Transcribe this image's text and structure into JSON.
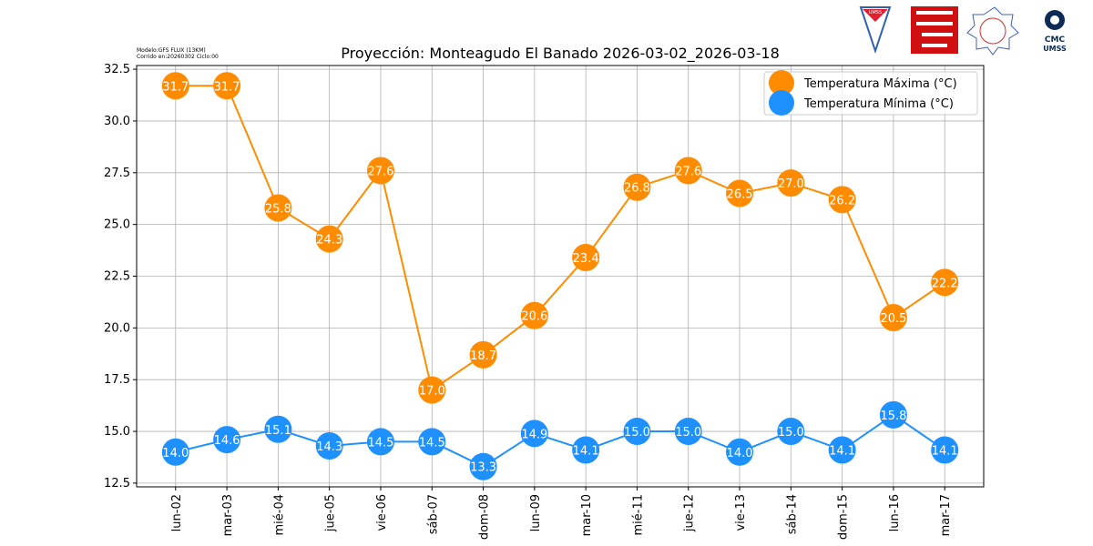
{
  "header": {
    "model": "Modelo:GFS FLUX (13KM)",
    "run": "Corrido en:20260302 Ciclo:00",
    "logos": [
      "UMSS",
      "",
      "",
      "CMC UMSS"
    ]
  },
  "colors": {
    "max": "#ff8c00",
    "min": "#1e90ff",
    "grid": "#b0b0b0"
  },
  "chart_data": {
    "type": "line",
    "title": "Proyección: Monteagudo El Banado 2026-03-02_2026-03-18",
    "xlabel": "",
    "ylabel": "",
    "categories": [
      "lun-02",
      "mar-03",
      "mié-04",
      "jue-05",
      "vie-06",
      "sáb-07",
      "dom-08",
      "lun-09",
      "mar-10",
      "mié-11",
      "jue-12",
      "vie-13",
      "sáb-14",
      "dom-15",
      "lun-16",
      "mar-17"
    ],
    "series": [
      {
        "name": "Temperatura Máxima  (°C)",
        "values": [
          31.7,
          31.7,
          25.8,
          24.3,
          27.6,
          17.0,
          18.7,
          20.6,
          23.4,
          26.8,
          27.6,
          26.5,
          27.0,
          26.2,
          20.5,
          22.2
        ]
      },
      {
        "name": "Temperatura Mínima  (°C)",
        "values": [
          14.0,
          14.6,
          15.1,
          14.3,
          14.5,
          14.5,
          13.3,
          14.9,
          14.1,
          15.0,
          15.0,
          14.0,
          15.0,
          14.1,
          15.8,
          14.1
        ]
      }
    ],
    "yticks": [
      "12.5",
      "15.0",
      "17.5",
      "20.0",
      "22.5",
      "25.0",
      "27.5",
      "30.0",
      "32.5"
    ],
    "ylim": [
      12.32,
      32.68
    ],
    "grid": true,
    "legend": "top-right"
  }
}
